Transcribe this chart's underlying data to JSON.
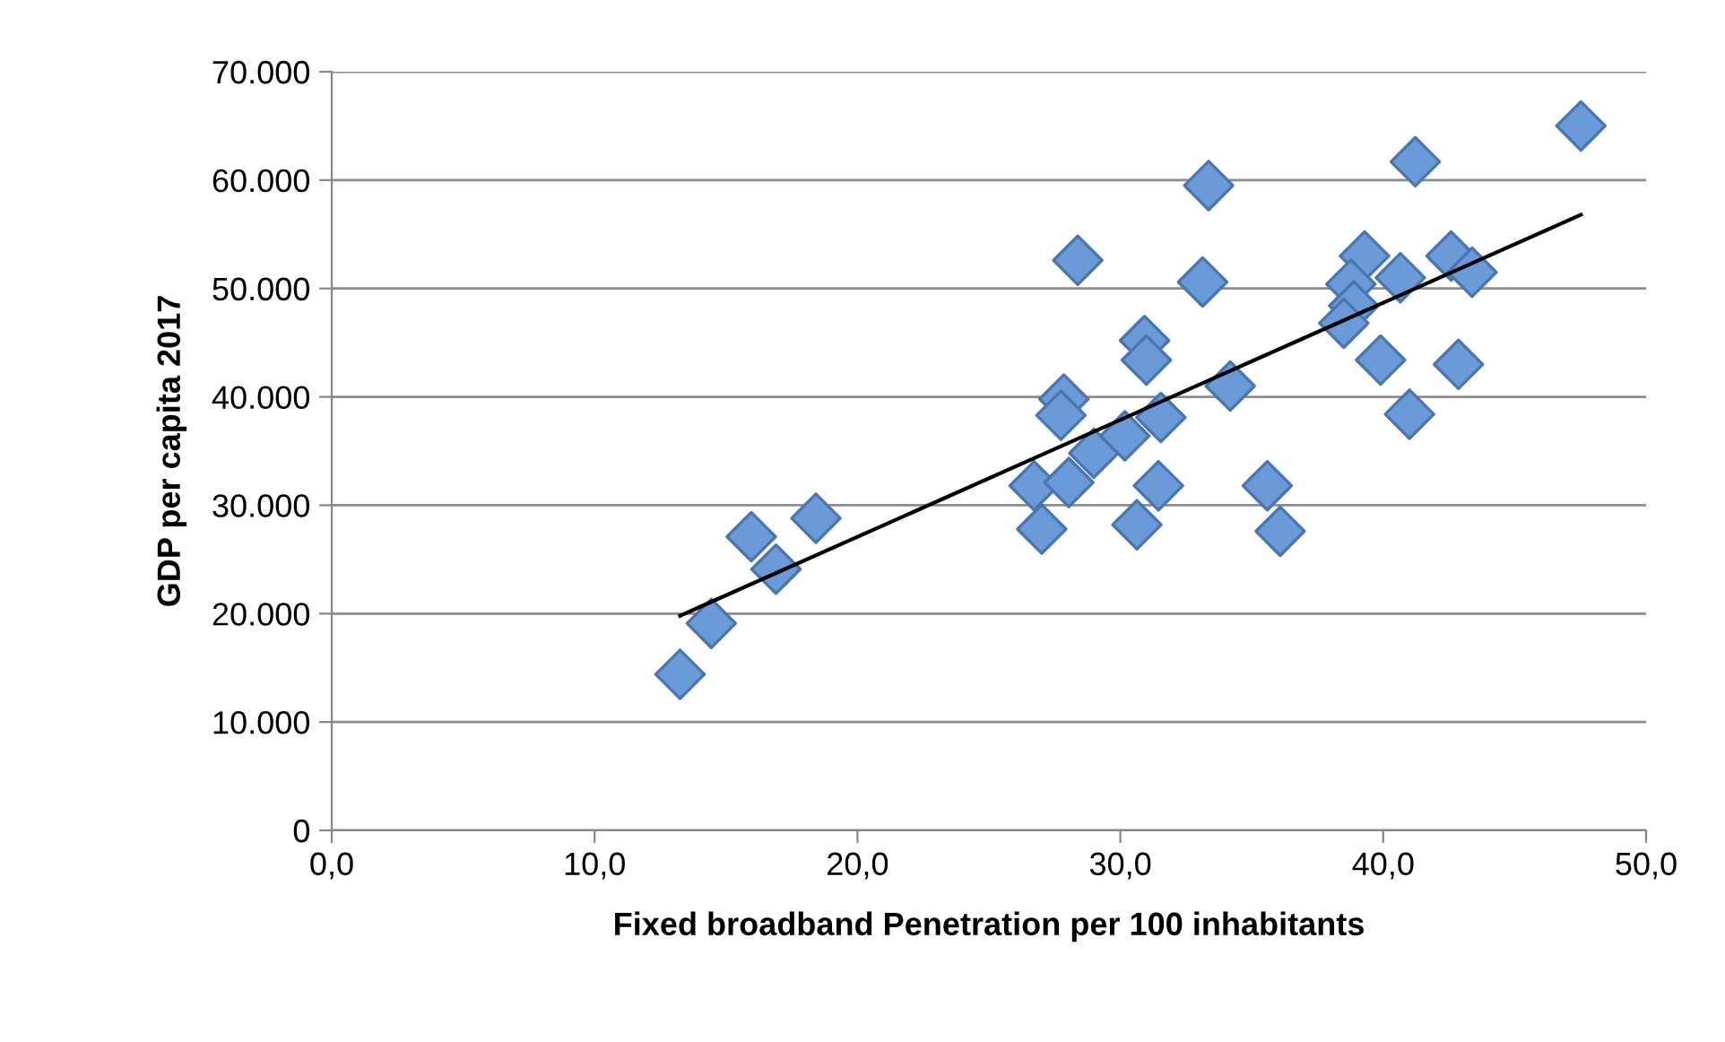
{
  "chart_data": {
    "type": "scatter",
    "xlabel": "Fixed broadband Penetration per 100 inhabitants",
    "ylabel": "GDP per capita 2017",
    "series": [
      {
        "color": "#6a9bd8",
        "marker": "diamond",
        "x": [
          13.25,
          14.44,
          15.96,
          16.9,
          18.42,
          26.72,
          27.01,
          28.04,
          30.63,
          28.38,
          30.92,
          30.99,
          27.85,
          27.74,
          28.99,
          30.17,
          47.52,
          41.22,
          33.36,
          39.29,
          42.58,
          43.38,
          40.65,
          33.13,
          38.77,
          38.88,
          38.5,
          39.9,
          42.86,
          34.18,
          41.0,
          31.54,
          31.45,
          35.59,
          36.08
        ],
        "values": [
          14400,
          19100,
          27100,
          24100,
          28800,
          31800,
          27800,
          32100,
          28200,
          52600,
          45200,
          43400,
          39800,
          38300,
          34800,
          36400,
          65000,
          61700,
          59500,
          53000,
          53000,
          51500,
          51000,
          50600,
          50400,
          48400,
          46800,
          43400,
          43000,
          41000,
          38400,
          38100,
          31800,
          31800,
          27600
        ]
      },
      {
        "type": "line",
        "color": "#000000",
        "marker": "none",
        "x": [
          13.25,
          47.52
        ],
        "values": [
          19800,
          56800
        ]
      }
    ],
    "xlim": [
      0,
      50
    ],
    "xticks": [
      {
        "value": 0,
        "label": "0,0"
      },
      {
        "value": 10,
        "label": "10,0"
      },
      {
        "value": 20,
        "label": "20,0"
      },
      {
        "value": 30,
        "label": "30,0"
      },
      {
        "value": 40,
        "label": "40,0"
      },
      {
        "value": 50,
        "label": "50,0"
      }
    ],
    "ylim": [
      0,
      70000
    ],
    "yticks": [
      0,
      {
        "value": 10000,
        "label": "10.000"
      },
      {
        "value": 20000,
        "label": "20.000"
      },
      {
        "value": 30000,
        "label": "30.000"
      },
      {
        "value": 40000,
        "label": "40.000"
      },
      {
        "value": 50000,
        "label": "50.000"
      },
      {
        "value": 60000,
        "label": "60.000"
      },
      {
        "value": 70000,
        "label": "70.000"
      }
    ],
    "grid": "y"
  }
}
